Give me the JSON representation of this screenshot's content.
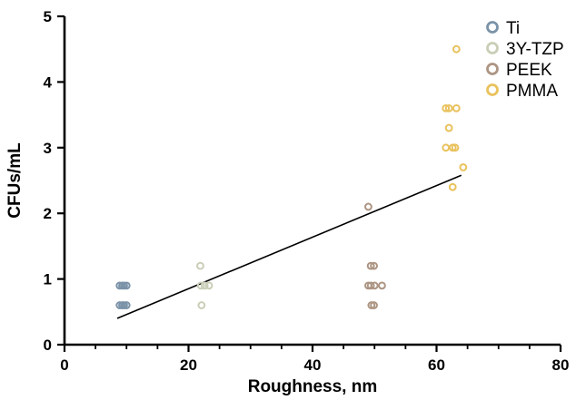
{
  "chart_data": {
    "type": "scatter",
    "xlabel": "Roughness, nm",
    "ylabel": "CFUs/mL",
    "xlim": [
      0,
      80
    ],
    "ylim": [
      0,
      5
    ],
    "x_ticks": [
      "0",
      "20",
      "40",
      "60",
      "80"
    ],
    "y_ticks": [
      "0",
      "1",
      "2",
      "3",
      "4",
      "5"
    ],
    "grid": false,
    "legend_position": "top-right",
    "series": [
      {
        "name": "Ti",
        "color": "#7b93a8",
        "points": [
          [
            8.9,
            0.9
          ],
          [
            9.3,
            0.9
          ],
          [
            9.6,
            0.9
          ],
          [
            10.0,
            0.9
          ],
          [
            8.9,
            0.6
          ],
          [
            9.3,
            0.6
          ],
          [
            9.6,
            0.6
          ],
          [
            10.0,
            0.6
          ]
        ]
      },
      {
        "name": "3Y-TZP",
        "color": "#c9cfb7",
        "points": [
          [
            21.9,
            1.2
          ],
          [
            22.0,
            0.9
          ],
          [
            22.6,
            0.9
          ],
          [
            23.3,
            0.9
          ],
          [
            22.1,
            0.6
          ]
        ]
      },
      {
        "name": "PEEK",
        "color": "#ad9583",
        "points": [
          [
            49.0,
            2.1
          ],
          [
            49.4,
            1.2
          ],
          [
            49.9,
            1.2
          ],
          [
            49.0,
            0.9
          ],
          [
            49.4,
            0.9
          ],
          [
            50.0,
            0.9
          ],
          [
            51.2,
            0.9
          ],
          [
            49.5,
            0.6
          ],
          [
            49.9,
            0.6
          ]
        ]
      },
      {
        "name": "PMMA",
        "color": "#e9c25d",
        "points": [
          [
            63.2,
            4.5
          ],
          [
            61.5,
            3.6
          ],
          [
            62.0,
            3.6
          ],
          [
            63.2,
            3.6
          ],
          [
            62.0,
            3.3
          ],
          [
            61.5,
            3.0
          ],
          [
            62.6,
            3.0
          ],
          [
            63.0,
            3.0
          ],
          [
            64.3,
            2.7
          ],
          [
            62.6,
            2.4
          ]
        ]
      }
    ],
    "trendline": {
      "x": [
        8.5,
        64.0
      ],
      "y": [
        0.4,
        2.58
      ]
    }
  }
}
